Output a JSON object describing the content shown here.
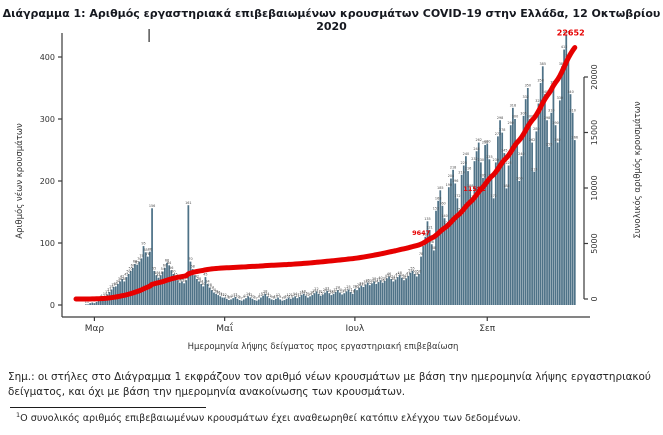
{
  "title": "Διάγραμμα 1: Αριθμός εργαστηριακά επιβεβαιωμένων κρουσμάτων COVID-19 στην Ελλάδα, 12 Οκτωβρίου 2020",
  "notes": {
    "note1": "Σημ.: οι στήλες στο Διάγραμμα 1 εκφράζουν τον αριθμό νέων κρουσμάτων με βάση την ημερομηνία λήψης εργαστηριακού δείγματος, και όχι με βάση την ημερομηνία ανακοίνωσης των κρουσμάτων.",
    "footnote_marker": "1",
    "footnote_text": "Ο συνολικός αριθμός επιβεβαιωμένων κρουσμάτων έχει αναθεωρηθεί κατόπιν ελέγχου των δεδομένων."
  },
  "chart_data": {
    "type": "bar",
    "xlabel": "Ημερομηνία λήψης δείγματος προς εργαστηριακή επιβεβαίωση",
    "x_tick_labels": [
      "Μαρ",
      "Μαΐ",
      "Ιουλ",
      "Σεπ"
    ],
    "x_tick_day_index": [
      4,
      65,
      126,
      188
    ],
    "left_axis": {
      "label": "Αριθμός νέων κρουσμάτων",
      "ticks": [
        0,
        100,
        200,
        300,
        400
      ]
    },
    "right_axis": {
      "label": "Συνολικός αριθμός κρουσμάτων",
      "ticks": [
        0,
        5000,
        10000,
        15000,
        20000
      ]
    },
    "bar_color": "#4e7287",
    "line_color": "#e60000",
    "series": [
      {
        "name": "Αριθμός νέων κρουσμάτων",
        "type": "bar",
        "values_estimated": true,
        "values": [
          1,
          1,
          3,
          4,
          3,
          5,
          7,
          9,
          11,
          14,
          17,
          21,
          25,
          29,
          30,
          34,
          38,
          42,
          38,
          45,
          50,
          55,
          60,
          66,
          65,
          70,
          75,
          95,
          85,
          78,
          86,
          156,
          55,
          48,
          44,
          48,
          54,
          60,
          68,
          64,
          56,
          50,
          45,
          40,
          36,
          38,
          35,
          40,
          161,
          70,
          58,
          48,
          42,
          38,
          34,
          30,
          45,
          34,
          28,
          24,
          20,
          18,
          16,
          14,
          12,
          12,
          10,
          8,
          9,
          11,
          13,
          10,
          8,
          7,
          9,
          11,
          14,
          12,
          10,
          8,
          7,
          9,
          12,
          15,
          18,
          14,
          11,
          9,
          8,
          10,
          12,
          9,
          7,
          8,
          10,
          12,
          10,
          12,
          14,
          11,
          13,
          16,
          18,
          15,
          12,
          14,
          16,
          19,
          22,
          18,
          15,
          17,
          20,
          23,
          19,
          16,
          18,
          21,
          24,
          20,
          17,
          19,
          22,
          25,
          21,
          18,
          26,
          24,
          28,
          31,
          29,
          33,
          36,
          32,
          35,
          38,
          34,
          37,
          40,
          36,
          39,
          43,
          46,
          42,
          38,
          41,
          45,
          48,
          44,
          40,
          43,
          47,
          52,
          55,
          50,
          46,
          50,
          78,
          95,
          110,
          135,
          121,
          98,
          88,
          152,
          168,
          185,
          160,
          140,
          128,
          190,
          204,
          218,
          196,
          172,
          150,
          210,
          225,
          240,
          216,
          188,
          170,
          232,
          248,
          262,
          230,
          205,
          258,
          260,
          235,
          205,
          172,
          230,
          272,
          298,
          278,
          245,
          188,
          225,
          290,
          318,
          300,
          258,
          200,
          240,
          305,
          332,
          350,
          300,
          262,
          215,
          280,
          325,
          358,
          385,
          340,
          298,
          255,
          310,
          355,
          290,
          262,
          330,
          385,
          412,
          436,
          398,
          340,
          310,
          266
        ]
      },
      {
        "name": "Συνολικός αριθμός κρουσμάτων",
        "type": "line",
        "derivation": "cumulative_sum_of_bar_series",
        "final_value": 22652
      }
    ],
    "annotations": [
      {
        "text": "9647",
        "day_index": 157
      },
      {
        "text": "11582",
        "day_index": 181
      },
      {
        "text": "22652",
        "day_index": 229
      }
    ]
  }
}
